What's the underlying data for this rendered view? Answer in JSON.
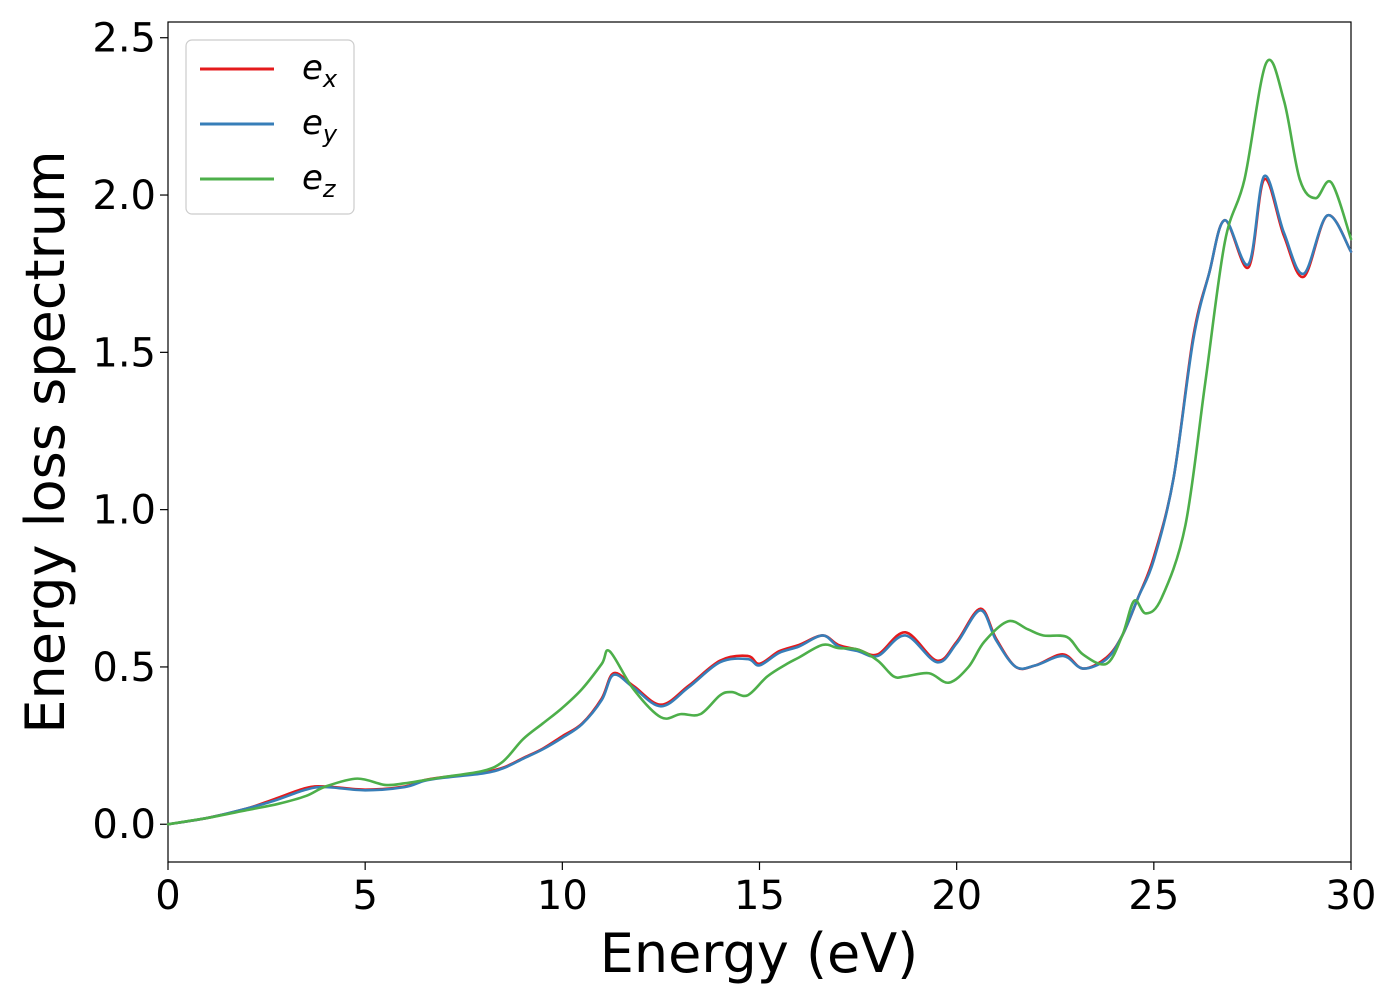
{
  "chart_data": {
    "type": "line",
    "title": "",
    "xlabel": "Energy (eV)",
    "ylabel": "Energy loss spectrum",
    "xlim": [
      0,
      30
    ],
    "ylim": [
      -0.12,
      2.55
    ],
    "xticks": [
      0,
      5,
      10,
      15,
      20,
      25,
      30
    ],
    "xtick_labels": [
      "0",
      "5",
      "10",
      "15",
      "20",
      "25",
      "30"
    ],
    "yticks": [
      0.0,
      0.5,
      1.0,
      1.5,
      2.0,
      2.5
    ],
    "ytick_labels": [
      "0.0",
      "0.5",
      "1.0",
      "1.5",
      "2.0",
      "2.5"
    ],
    "grid": false,
    "legend_position": "top-left",
    "series": [
      {
        "name": "e_x",
        "legend_base": "e",
        "legend_sub": "x",
        "color": "#e41a1c",
        "x": [
          0,
          1,
          2,
          2.7,
          3.5,
          4,
          5,
          6,
          6.5,
          7,
          8,
          8.5,
          9,
          9.5,
          10,
          10.5,
          11,
          11.3,
          11.8,
          12.5,
          13.2,
          14,
          14.7,
          15,
          15.5,
          16,
          16.6,
          17,
          17.5,
          18,
          18.7,
          19.5,
          20,
          20.6,
          21,
          21.5,
          22,
          22.7,
          23.2,
          23.8,
          24.2,
          24.6,
          25,
          25.5,
          26,
          26.4,
          26.8,
          27.4,
          27.8,
          28.3,
          28.8,
          29.4,
          30
        ],
        "y": [
          0,
          0.02,
          0.05,
          0.08,
          0.115,
          0.12,
          0.11,
          0.12,
          0.14,
          0.15,
          0.165,
          0.18,
          0.21,
          0.24,
          0.28,
          0.32,
          0.4,
          0.48,
          0.44,
          0.38,
          0.44,
          0.52,
          0.535,
          0.51,
          0.55,
          0.57,
          0.6,
          0.57,
          0.555,
          0.54,
          0.61,
          0.52,
          0.58,
          0.685,
          0.59,
          0.5,
          0.505,
          0.54,
          0.495,
          0.53,
          0.6,
          0.72,
          0.85,
          1.1,
          1.55,
          1.75,
          1.92,
          1.77,
          2.05,
          1.87,
          1.74,
          1.935,
          1.82
        ]
      },
      {
        "name": "e_y",
        "legend_base": "e",
        "legend_sub": "y",
        "color": "#377eb8",
        "x": [
          0,
          1,
          2,
          2.7,
          3.5,
          4,
          5,
          6,
          6.5,
          7,
          8,
          8.5,
          9,
          9.5,
          10,
          10.5,
          11,
          11.3,
          11.8,
          12.5,
          13.2,
          14,
          14.7,
          15,
          15.5,
          16,
          16.6,
          17,
          17.5,
          18,
          18.7,
          19.5,
          20,
          20.6,
          21,
          21.5,
          22,
          22.7,
          23.2,
          23.8,
          24.2,
          24.6,
          25,
          25.5,
          26,
          26.4,
          26.8,
          27.4,
          27.8,
          28.3,
          28.8,
          29.4,
          30
        ],
        "y": [
          0,
          0.02,
          0.05,
          0.075,
          0.11,
          0.118,
          0.108,
          0.118,
          0.138,
          0.148,
          0.162,
          0.178,
          0.208,
          0.238,
          0.275,
          0.318,
          0.395,
          0.475,
          0.435,
          0.375,
          0.435,
          0.515,
          0.525,
          0.505,
          0.545,
          0.565,
          0.6,
          0.565,
          0.55,
          0.535,
          0.6,
          0.515,
          0.575,
          0.68,
          0.585,
          0.5,
          0.505,
          0.535,
          0.495,
          0.525,
          0.6,
          0.72,
          0.84,
          1.1,
          1.54,
          1.75,
          1.92,
          1.78,
          2.06,
          1.88,
          1.75,
          1.935,
          1.82
        ]
      },
      {
        "name": "e_z",
        "legend_base": "e",
        "legend_sub": "z",
        "color": "#4daf4a",
        "x": [
          0,
          1,
          2,
          2.8,
          3.5,
          4,
          4.8,
          5.5,
          6,
          6.5,
          7,
          8,
          8.5,
          9,
          9.5,
          10,
          10.5,
          11,
          11.2,
          11.8,
          12.5,
          13,
          13.5,
          14,
          14.3,
          14.7,
          15.2,
          15.7,
          16,
          16.6,
          17,
          17.5,
          18,
          18.4,
          18.7,
          19.3,
          19.8,
          20.3,
          20.7,
          21.3,
          21.8,
          22.2,
          22.8,
          23.2,
          23.8,
          24.2,
          24.5,
          24.8,
          25.2,
          25.8,
          26.3,
          26.8,
          27.3,
          27.85,
          28.3,
          28.7,
          29.1,
          29.5,
          30
        ],
        "y": [
          0,
          0.02,
          0.045,
          0.065,
          0.09,
          0.12,
          0.145,
          0.125,
          0.13,
          0.14,
          0.15,
          0.17,
          0.2,
          0.27,
          0.32,
          0.37,
          0.43,
          0.51,
          0.55,
          0.43,
          0.34,
          0.35,
          0.35,
          0.41,
          0.42,
          0.41,
          0.47,
          0.51,
          0.53,
          0.57,
          0.56,
          0.555,
          0.52,
          0.47,
          0.47,
          0.48,
          0.45,
          0.5,
          0.58,
          0.645,
          0.62,
          0.6,
          0.595,
          0.54,
          0.51,
          0.6,
          0.71,
          0.67,
          0.72,
          0.95,
          1.4,
          1.85,
          2.05,
          2.42,
          2.3,
          2.05,
          1.99,
          2.04,
          1.86
        ]
      }
    ]
  }
}
